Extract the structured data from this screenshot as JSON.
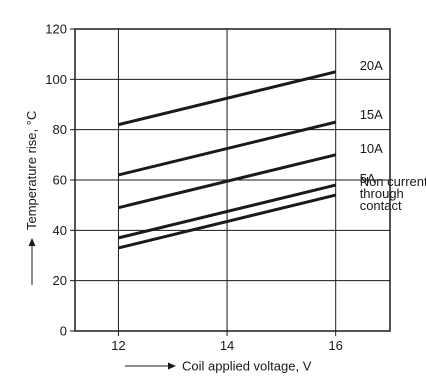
{
  "chart_data": {
    "type": "line",
    "xlabel": "Coil applied voltage, V",
    "ylabel": "Temperature rise, °C",
    "xlim": [
      11.2,
      17
    ],
    "ylim": [
      0,
      120
    ],
    "xticks": [
      12,
      14,
      16
    ],
    "yticks": [
      0,
      20,
      40,
      60,
      80,
      100,
      120
    ],
    "grid": true,
    "series": [
      {
        "name": "20A",
        "x": [
          12,
          16
        ],
        "y": [
          82,
          103
        ]
      },
      {
        "name": "15A",
        "x": [
          12,
          16
        ],
        "y": [
          62,
          83
        ]
      },
      {
        "name": "10A",
        "x": [
          12,
          16
        ],
        "y": [
          49,
          70
        ]
      },
      {
        "name": "5A",
        "x": [
          12,
          16
        ],
        "y": [
          37,
          58
        ]
      },
      {
        "name": "Non current through contact",
        "x": [
          12,
          16
        ],
        "y": [
          33,
          54
        ]
      }
    ],
    "line_label_lines": {
      "20A": [
        "20A"
      ],
      "15A": [
        "15A"
      ],
      "10A": [
        "10A"
      ],
      "5A": [
        "5A"
      ],
      "Non current through contact": [
        "Non current",
        "through",
        "contact"
      ]
    }
  }
}
